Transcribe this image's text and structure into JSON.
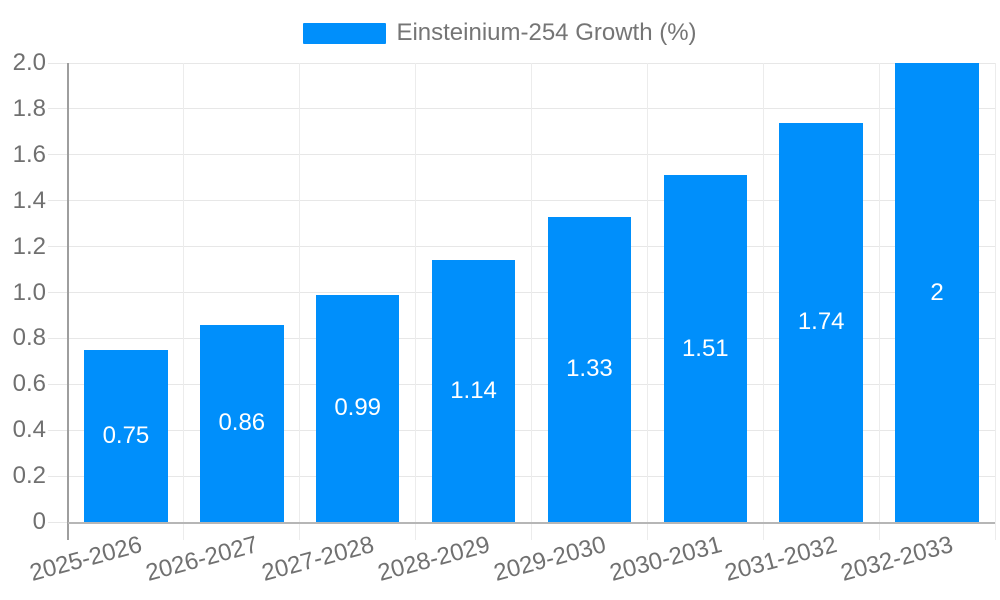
{
  "chart_data": {
    "type": "bar",
    "legend": {
      "label": "Einsteinium-254 Growth (%)",
      "position": "top"
    },
    "categories": [
      "2025-2026",
      "2026-2027",
      "2027-2028",
      "2028-2029",
      "2029-2030",
      "2030-2031",
      "2031-2032",
      "2032-2033"
    ],
    "series": [
      {
        "name": "Einsteinium-254 Growth (%)",
        "values": [
          0.75,
          0.86,
          0.99,
          1.14,
          1.33,
          1.51,
          1.74,
          2
        ]
      }
    ],
    "value_labels": [
      "0.75",
      "0.86",
      "0.99",
      "1.14",
      "1.33",
      "1.51",
      "1.74",
      "2"
    ],
    "ylim": [
      0,
      2
    ],
    "ytick_step": 0.2,
    "ytick_labels": [
      "0",
      "0.2",
      "0.4",
      "0.6",
      "0.8",
      "1.0",
      "1.2",
      "1.4",
      "1.6",
      "1.8",
      "2.0"
    ],
    "grid": true,
    "x_label_rotation_deg": -15,
    "colors": {
      "bar": "#008FFB",
      "bar_label": "#ffffff",
      "grid_horizontal": "#e7e7e7",
      "grid_vertical": "#ececec",
      "axis_x": "#b6b6b6",
      "axis_y": "#9e9e9e",
      "tick_label": "#707070",
      "legend_text": "#757575",
      "background": "#ffffff"
    }
  }
}
